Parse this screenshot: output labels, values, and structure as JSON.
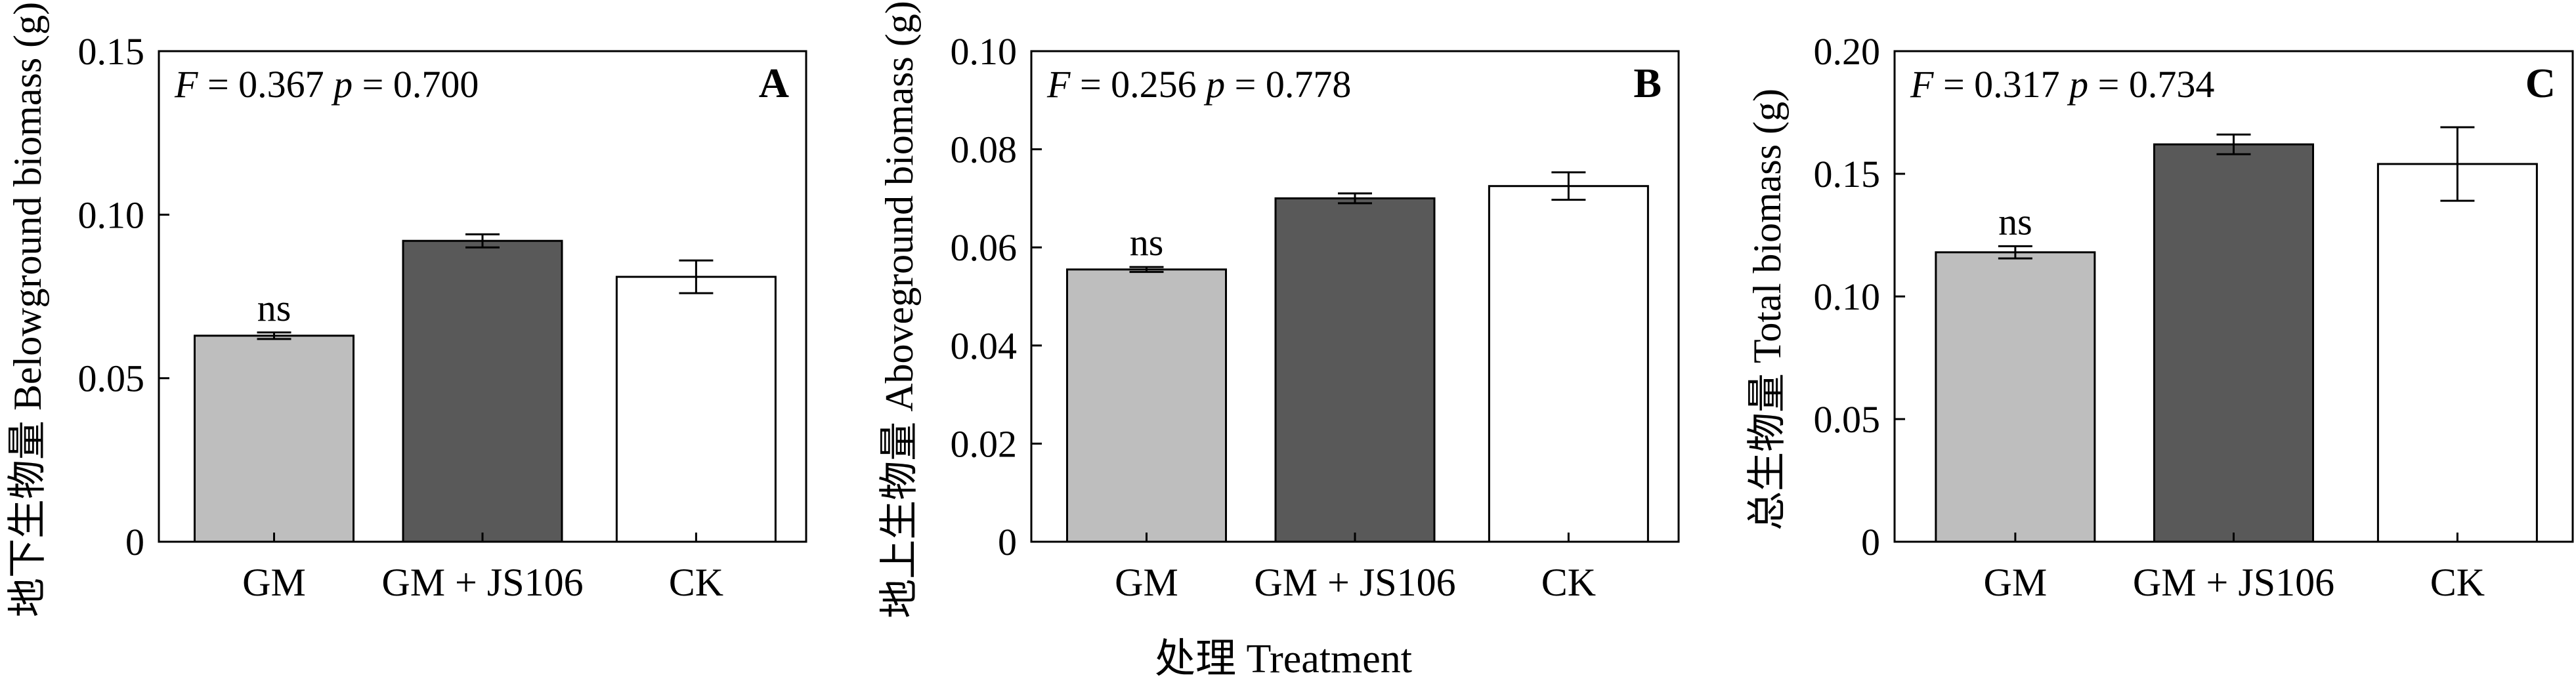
{
  "xlabel": "处理 Treatment",
  "colors": {
    "GM": "#bebebe",
    "GM + JS106": "#595959",
    "CK": "#ffffff",
    "stroke": "#000000"
  },
  "chart_data": [
    {
      "type": "bar",
      "panel": "A",
      "ylabel": "地下生物量 Belowground biomass (g)",
      "categories": [
        "GM",
        "GM + JS106",
        "CK"
      ],
      "values": [
        0.063,
        0.092,
        0.081
      ],
      "errors": [
        0.001,
        0.002,
        0.005
      ],
      "ylim": [
        0,
        0.15
      ],
      "yticks": [
        0,
        0.05,
        0.1,
        0.15
      ],
      "ytick_labels": [
        "0",
        "0.05",
        "0.10",
        "0.15"
      ],
      "stat_F": "0.367",
      "stat_p": "0.700",
      "annotation": "ns"
    },
    {
      "type": "bar",
      "panel": "B",
      "ylabel": "地上生物量 Aboveground biomass (g)",
      "categories": [
        "GM",
        "GM + JS106",
        "CK"
      ],
      "values": [
        0.0555,
        0.07,
        0.0725
      ],
      "errors": [
        0.0005,
        0.001,
        0.0028
      ],
      "ylim": [
        0,
        0.1
      ],
      "yticks": [
        0,
        0.02,
        0.04,
        0.06,
        0.08,
        0.1
      ],
      "ytick_labels": [
        "0",
        "0.02",
        "0.04",
        "0.06",
        "0.08",
        "0.10"
      ],
      "stat_F": "0.256",
      "stat_p": "0.778",
      "annotation": "ns"
    },
    {
      "type": "bar",
      "panel": "C",
      "ylabel": "总生物量 Total biomass (g)",
      "categories": [
        "GM",
        "GM + JS106",
        "CK"
      ],
      "values": [
        0.118,
        0.162,
        0.154
      ],
      "errors": [
        0.0025,
        0.004,
        0.015
      ],
      "ylim": [
        0,
        0.2
      ],
      "yticks": [
        0,
        0.05,
        0.1,
        0.15,
        0.2
      ],
      "ytick_labels": [
        "0",
        "0.05",
        "0.10",
        "0.15",
        "0.20"
      ],
      "stat_F": "0.317",
      "stat_p": "0.734",
      "annotation": "ns"
    }
  ]
}
